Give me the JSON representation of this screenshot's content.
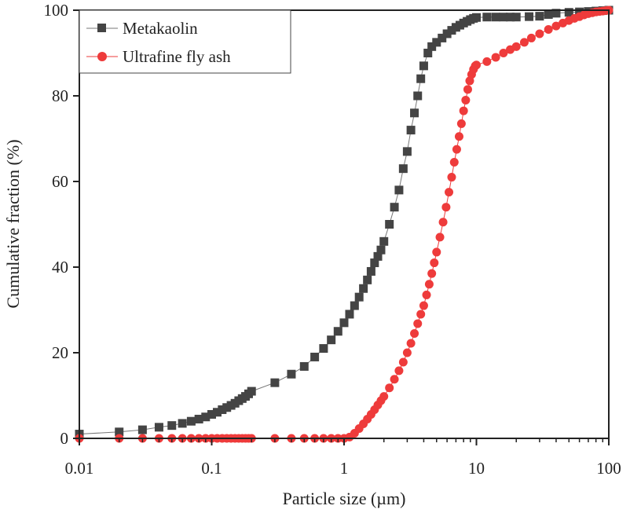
{
  "chart_data": {
    "type": "scatter",
    "title": "",
    "xlabel": "Particle size (µm)",
    "ylabel": "Cumulative fraction (%)",
    "x_scale": "log",
    "xlim": [
      0.01,
      100
    ],
    "ylim": [
      0,
      100
    ],
    "x_ticks": [
      "0.01",
      "0.1",
      "1",
      "10",
      "100"
    ],
    "y_ticks": [
      "0",
      "20",
      "40",
      "60",
      "80",
      "100"
    ],
    "grid": false,
    "legend_position": "top-left",
    "series": [
      {
        "name": "Metakaolin",
        "marker": "square",
        "color": "#444444",
        "x": [
          0.01,
          0.02,
          0.03,
          0.04,
          0.05,
          0.06,
          0.07,
          0.08,
          0.09,
          0.1,
          0.11,
          0.12,
          0.13,
          0.14,
          0.15,
          0.16,
          0.17,
          0.18,
          0.19,
          0.2,
          0.3,
          0.4,
          0.5,
          0.6,
          0.7,
          0.8,
          0.9,
          1.0,
          1.1,
          1.2,
          1.3,
          1.4,
          1.5,
          1.6,
          1.7,
          1.8,
          1.9,
          2.0,
          2.2,
          2.4,
          2.6,
          2.8,
          3.0,
          3.2,
          3.4,
          3.6,
          3.8,
          4.0,
          4.3,
          4.6,
          5.0,
          5.5,
          6.0,
          6.5,
          7.0,
          7.5,
          8.0,
          8.5,
          9.0,
          9.5,
          10,
          12,
          14,
          16,
          18,
          20,
          25,
          30,
          35,
          40,
          50,
          60,
          70,
          80,
          90,
          100
        ],
        "y": [
          1.0,
          1.5,
          2.0,
          2.6,
          3.0,
          3.5,
          4.0,
          4.5,
          5.0,
          5.6,
          6.1,
          6.7,
          7.2,
          7.7,
          8.2,
          8.8,
          9.3,
          9.8,
          10.4,
          11.0,
          13.0,
          15.0,
          16.8,
          19.0,
          21.0,
          23.0,
          25.0,
          27.0,
          29.0,
          31.0,
          33.0,
          35.0,
          37.0,
          39.0,
          41.0,
          42.5,
          44.0,
          46.0,
          50.0,
          54.0,
          58.0,
          63.0,
          67.0,
          72.0,
          76.0,
          80.0,
          84.0,
          87.0,
          90.0,
          91.5,
          92.5,
          93.5,
          94.5,
          95.3,
          96.0,
          96.5,
          97.0,
          97.4,
          97.8,
          98.1,
          98.3,
          98.4,
          98.4,
          98.4,
          98.4,
          98.4,
          98.5,
          98.6,
          99.0,
          99.3,
          99.5,
          99.6,
          99.7,
          99.8,
          99.9,
          100
        ]
      },
      {
        "name": "Ultrafine fly ash",
        "marker": "circle",
        "color": "#EE3B3B",
        "x": [
          0.01,
          0.02,
          0.03,
          0.04,
          0.05,
          0.06,
          0.07,
          0.08,
          0.09,
          0.1,
          0.11,
          0.12,
          0.13,
          0.14,
          0.15,
          0.16,
          0.17,
          0.18,
          0.19,
          0.2,
          0.3,
          0.4,
          0.5,
          0.6,
          0.7,
          0.8,
          0.9,
          1.0,
          1.1,
          1.2,
          1.3,
          1.4,
          1.5,
          1.6,
          1.7,
          1.8,
          1.9,
          2.0,
          2.2,
          2.4,
          2.6,
          2.8,
          3.0,
          3.2,
          3.4,
          3.6,
          3.8,
          4.0,
          4.2,
          4.4,
          4.6,
          4.8,
          5.0,
          5.3,
          5.6,
          5.9,
          6.2,
          6.5,
          6.8,
          7.1,
          7.4,
          7.7,
          8.0,
          8.3,
          8.6,
          8.9,
          9.2,
          9.5,
          9.8,
          10,
          12,
          14,
          16,
          18,
          20,
          23,
          26,
          30,
          35,
          40,
          45,
          50,
          55,
          60,
          65,
          70,
          75,
          80,
          85,
          90,
          95,
          100
        ],
        "y": [
          0,
          0,
          0,
          0,
          0,
          0,
          0,
          0,
          0,
          0,
          0,
          0,
          0,
          0,
          0,
          0,
          0,
          0,
          0,
          0,
          0,
          0,
          0,
          0,
          0,
          0,
          0,
          0,
          0.3,
          1.2,
          2.3,
          3.4,
          4.5,
          5.6,
          6.7,
          7.8,
          8.8,
          9.8,
          11.8,
          13.8,
          15.8,
          17.8,
          20.0,
          22.2,
          24.5,
          26.8,
          29.0,
          31.0,
          33.5,
          36.0,
          38.5,
          41.0,
          43.5,
          47.0,
          50.5,
          54.0,
          57.5,
          61.0,
          64.5,
          67.5,
          70.5,
          73.5,
          76.5,
          79.0,
          81.5,
          83.5,
          85.0,
          86.2,
          87.0,
          87.2,
          88.0,
          89.0,
          90.0,
          90.8,
          91.5,
          92.5,
          93.5,
          94.5,
          95.5,
          96.3,
          97.0,
          97.6,
          98.1,
          98.5,
          98.9,
          99.2,
          99.4,
          99.6,
          99.7,
          99.8,
          99.9,
          100
        ]
      }
    ]
  }
}
